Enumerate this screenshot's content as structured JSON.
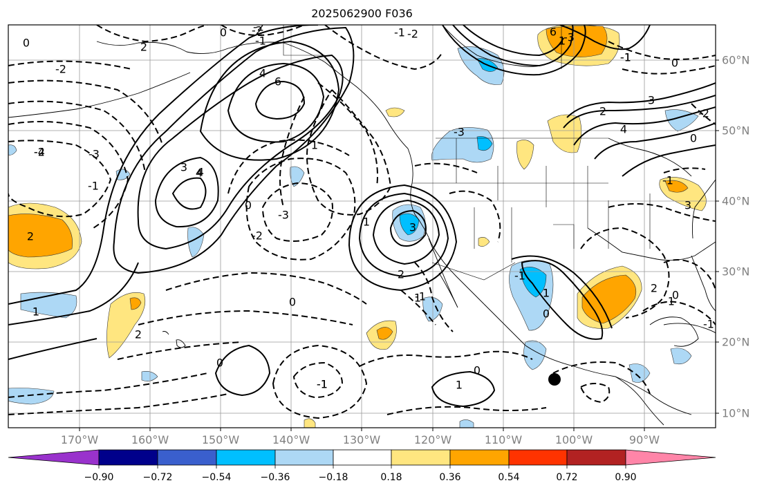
{
  "title": "2025062900 F036",
  "lat_labels": [
    "60°N",
    "50°N",
    "40°N",
    "30°N",
    "20°N",
    "10°N"
  ],
  "lon_labels": [
    "170°W",
    "160°W",
    "150°W",
    "140°W",
    "130°W",
    "120°W",
    "110°W",
    "100°W",
    "90°W"
  ],
  "colorbar": {
    "ticks": [
      "−0.90",
      "−0.72",
      "−0.54",
      "−0.36",
      "−0.18",
      "0.18",
      "0.36",
      "0.54",
      "0.72",
      "0.90"
    ],
    "colors": [
      "#9932cc",
      "#00008b",
      "#3a5fcd",
      "#00bfff",
      "#add8f5",
      "#ffffff",
      "#ffe680",
      "#ffa500",
      "#ff3300",
      "#b22222",
      "#ff85a8"
    ]
  },
  "contour_labels": [
    "-2",
    "0",
    "-2",
    "-1",
    "-1",
    "-1",
    "0",
    "-2",
    "2",
    "4",
    "6",
    "6",
    "4",
    "2",
    "1",
    "0",
    "-2",
    "-4",
    "-3",
    "-1",
    "2",
    "3",
    "4",
    "1",
    "0",
    "-2",
    "-3",
    "-1",
    "-2",
    "-3",
    "1",
    "2",
    "3",
    "0",
    "-1",
    "1",
    "1",
    "0",
    "-1",
    "0",
    "1",
    "-3",
    "-1",
    "1",
    "2",
    "3",
    "4",
    "0",
    "-1",
    "3",
    "1",
    "0",
    "-1",
    "2",
    "-1",
    "-2",
    "-1",
    "0",
    "1"
  ],
  "marker": "station-dot"
}
